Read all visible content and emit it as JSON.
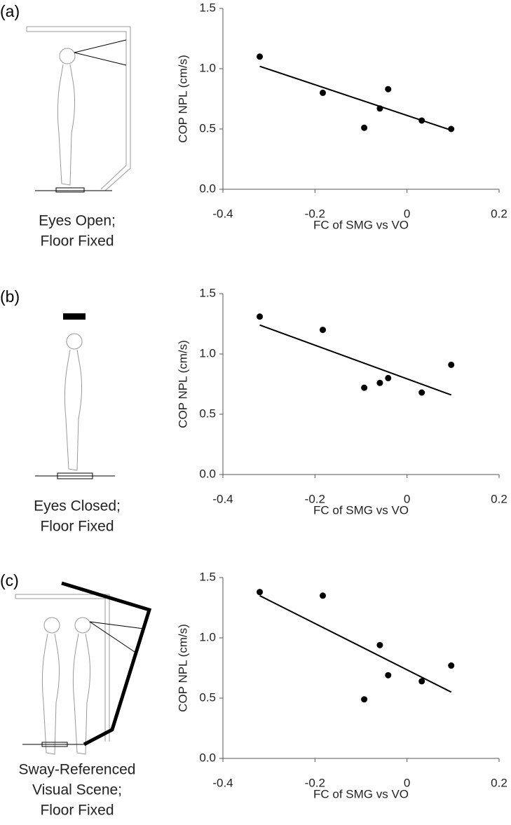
{
  "chart_data": [
    {
      "type": "scatter",
      "panel_label": "(a)",
      "caption": [
        "Eyes Open;",
        "Floor Fixed"
      ],
      "xlabel": "FC of SMG vs VO",
      "ylabel": "COP NPL (cm/s)",
      "x": [
        -0.32,
        -0.183,
        -0.059,
        -0.041,
        -0.093,
        0.032,
        0.096
      ],
      "values": [
        1.1,
        0.8,
        0.67,
        0.83,
        0.51,
        0.57,
        0.5
      ],
      "trendline": {
        "x": [
          -0.32,
          0.096
        ],
        "y": [
          1.02,
          0.49
        ]
      },
      "color": "#000000",
      "xlim": [
        -0.4,
        0.2
      ],
      "xticks": [
        -0.4,
        -0.2,
        0,
        0.2
      ],
      "ylim": [
        0,
        1.5
      ],
      "yticks": [
        {
          "value": 0,
          "label": "0.0"
        },
        0.5,
        {
          "value": 1,
          "label": "1.0"
        },
        1.5
      ]
    },
    {
      "type": "scatter",
      "panel_label": "(b)",
      "caption": [
        "Eyes Closed;",
        "Floor Fixed"
      ],
      "xlabel": "FC of SMG vs VO",
      "ylabel": "COP NPL (cm/s)",
      "x": [
        -0.32,
        -0.183,
        -0.093,
        -0.059,
        -0.041,
        0.032,
        0.096
      ],
      "values": [
        1.31,
        1.2,
        0.72,
        0.76,
        0.8,
        0.68,
        0.91
      ],
      "trendline": {
        "x": [
          -0.32,
          0.096
        ],
        "y": [
          1.24,
          0.66
        ]
      },
      "color": "#000000",
      "xlim": [
        -0.4,
        0.2
      ],
      "xticks": [
        -0.4,
        -0.2,
        0,
        0.2
      ],
      "ylim": [
        0,
        1.5
      ],
      "yticks": [
        {
          "value": 0,
          "label": "0.0"
        },
        0.5,
        {
          "value": 1,
          "label": "1.0"
        },
        1.5
      ]
    },
    {
      "type": "scatter",
      "panel_label": "(c)",
      "caption": [
        "Sway-Referenced",
        "Visual Scene;",
        "Floor Fixed"
      ],
      "xlabel": "FC of SMG vs VO",
      "ylabel": "COP NPL (cm/s)",
      "x": [
        -0.32,
        -0.183,
        -0.093,
        -0.059,
        -0.041,
        0.032,
        0.096
      ],
      "values": [
        1.38,
        1.35,
        0.49,
        0.94,
        0.69,
        0.64,
        0.77
      ],
      "trendline": {
        "x": [
          -0.32,
          0.096
        ],
        "y": [
          1.35,
          0.55
        ]
      },
      "color": "#000000",
      "xlim": [
        -0.4,
        0.2
      ],
      "xticks": [
        -0.4,
        -0.2,
        0,
        0.2
      ],
      "ylim": [
        0,
        1.5
      ],
      "yticks": [
        {
          "value": 0,
          "label": "0.0"
        },
        0.5,
        {
          "value": 1,
          "label": "1.0"
        },
        1.5
      ]
    }
  ]
}
